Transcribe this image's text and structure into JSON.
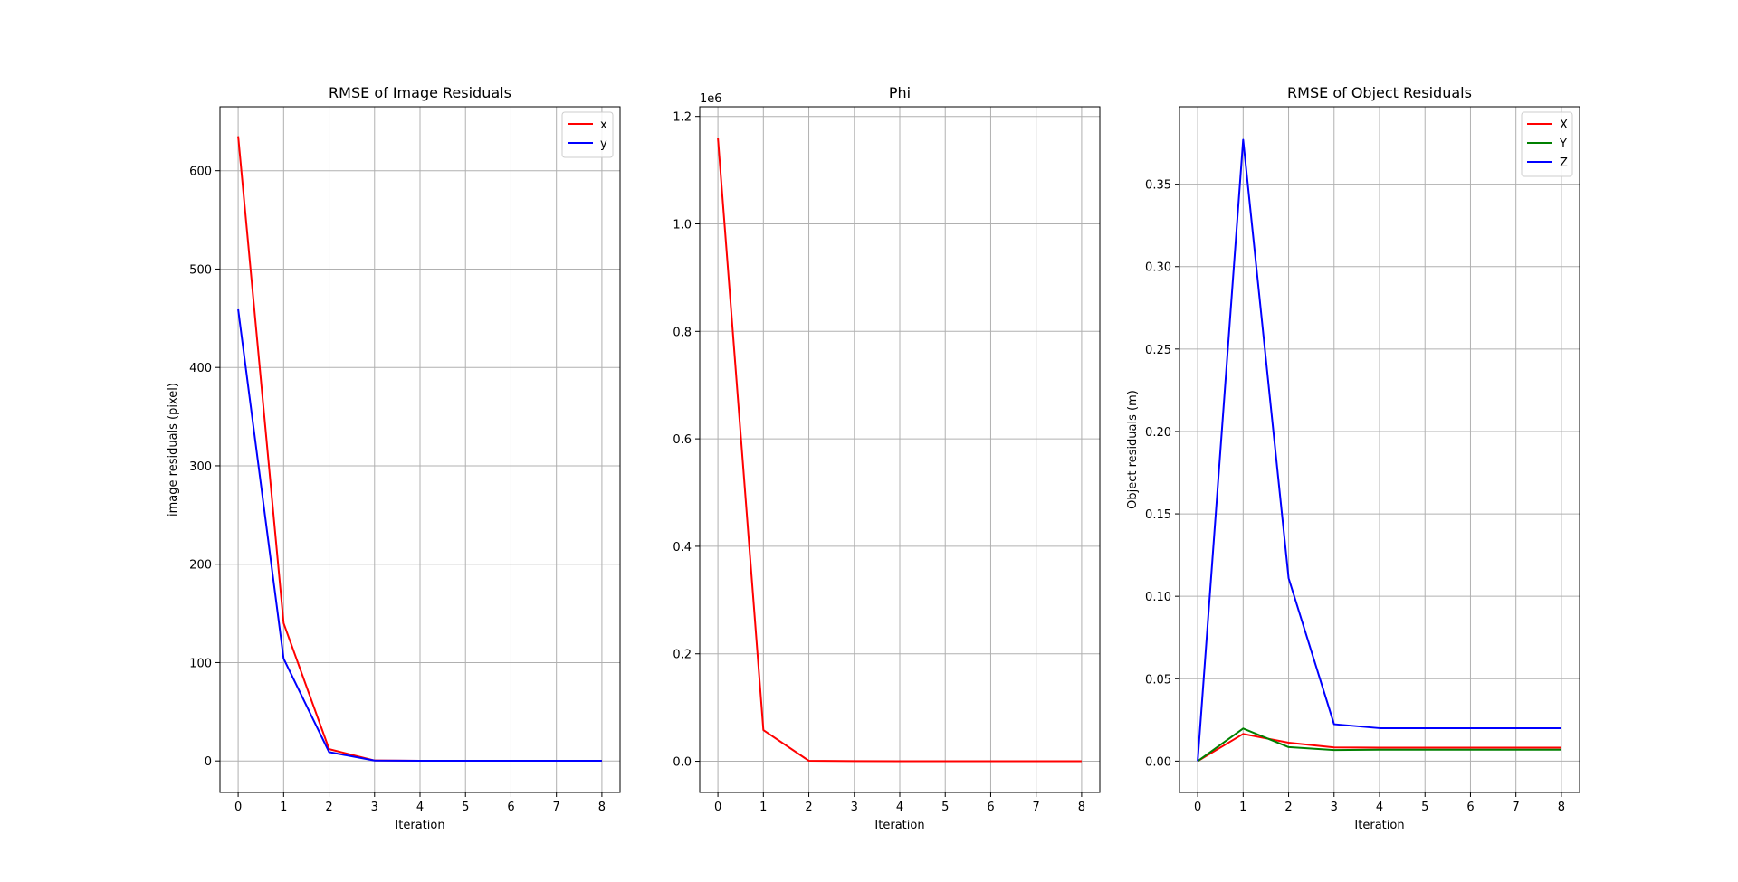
{
  "chart_data": [
    {
      "type": "line",
      "title": "RMSE of Image Residuals",
      "xlabel": "Iteration",
      "ylabel": "image residuals (pixel)",
      "xlim": [
        -0.4,
        8.4
      ],
      "ylim": [
        -32,
        665
      ],
      "xticks": [
        0,
        1,
        2,
        3,
        4,
        5,
        6,
        7,
        8
      ],
      "yticks": [
        0,
        100,
        200,
        300,
        400,
        500,
        600
      ],
      "ytick_labels": [
        "0",
        "100",
        "200",
        "300",
        "400",
        "500",
        "600"
      ],
      "offset_label": "",
      "grid": true,
      "legend": "top-right",
      "x": [
        0,
        1,
        2,
        3,
        4,
        5,
        6,
        7,
        8
      ],
      "series": [
        {
          "name": "x",
          "color": "#ff0000",
          "values": [
            635,
            140,
            12,
            0.5,
            0.2,
            0.2,
            0.2,
            0.2,
            0.2
          ]
        },
        {
          "name": "y",
          "color": "#0000ff",
          "values": [
            459,
            104,
            9,
            0.4,
            0.2,
            0.2,
            0.2,
            0.2,
            0.2
          ]
        }
      ]
    },
    {
      "type": "line",
      "title": "Phi",
      "xlabel": "Iteration",
      "ylabel": "",
      "xlim": [
        -0.4,
        8.4
      ],
      "ylim": [
        -58000,
        1218000
      ],
      "xticks": [
        0,
        1,
        2,
        3,
        4,
        5,
        6,
        7,
        8
      ],
      "yticks": [
        0,
        200000,
        400000,
        600000,
        800000,
        1000000,
        1200000
      ],
      "ytick_labels": [
        "0.0",
        "0.2",
        "0.4",
        "0.6",
        "0.8",
        "1.0",
        "1.2"
      ],
      "offset_label": "1e6",
      "grid": true,
      "legend": "",
      "x": [
        0,
        1,
        2,
        3,
        4,
        5,
        6,
        7,
        8
      ],
      "series": [
        {
          "color": "#ff0000",
          "values": [
            1160000,
            58000,
            900,
            200,
            100,
            100,
            100,
            100,
            100
          ]
        }
      ]
    },
    {
      "type": "line",
      "title": "RMSE of Object Residuals",
      "xlabel": "Iteration",
      "ylabel": "Object residuals (m)",
      "xlim": [
        -0.4,
        8.4
      ],
      "ylim": [
        -0.019,
        0.397
      ],
      "xticks": [
        0,
        1,
        2,
        3,
        4,
        5,
        6,
        7,
        8
      ],
      "yticks": [
        0,
        0.05,
        0.1,
        0.15,
        0.2,
        0.25,
        0.3,
        0.35
      ],
      "ytick_labels": [
        "0.00",
        "0.05",
        "0.10",
        "0.15",
        "0.20",
        "0.25",
        "0.30",
        "0.35"
      ],
      "offset_label": "",
      "grid": true,
      "legend": "top-right",
      "x": [
        0,
        1,
        2,
        3,
        4,
        5,
        6,
        7,
        8
      ],
      "series": [
        {
          "name": "X",
          "color": "#ff0000",
          "values": [
            0.0,
            0.0165,
            0.0112,
            0.0083,
            0.0082,
            0.0082,
            0.0082,
            0.0082,
            0.0082
          ]
        },
        {
          "name": "Y",
          "color": "#008000",
          "values": [
            0.0,
            0.0198,
            0.0085,
            0.0067,
            0.0069,
            0.0069,
            0.0069,
            0.0069,
            0.0069
          ]
        },
        {
          "name": "Z",
          "color": "#0000ff",
          "values": [
            0.0,
            0.377,
            0.111,
            0.0224,
            0.02,
            0.02,
            0.02,
            0.02,
            0.02
          ]
        }
      ]
    }
  ]
}
